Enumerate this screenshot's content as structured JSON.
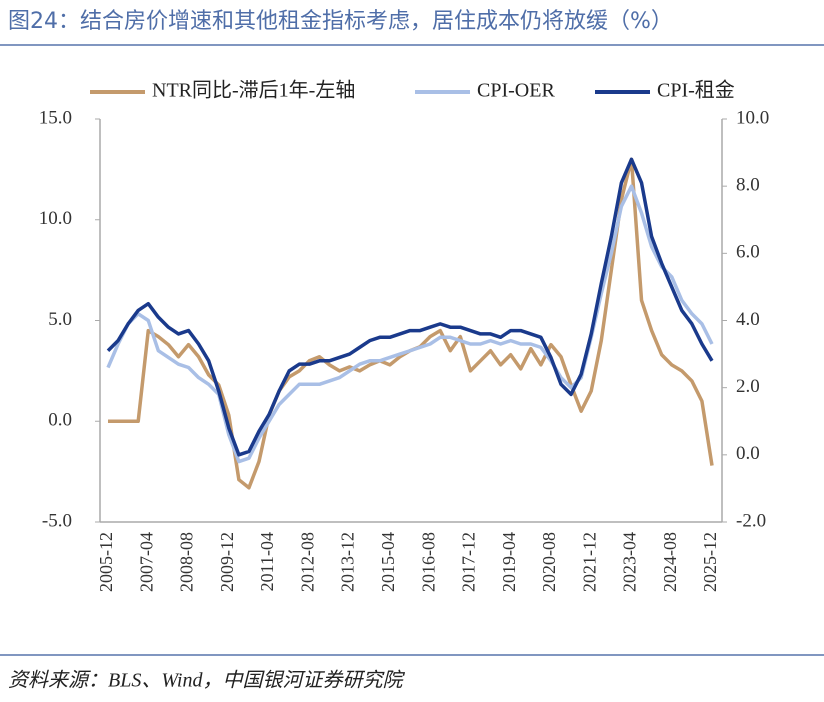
{
  "chart_data": {
    "type": "line",
    "title": "图24：结合房价增速和其他租金指标考虑，居住成本仍将放缓（%）",
    "source": "资料来源：BLS、Wind，中国银河证券研究院",
    "x": [
      "2005-12",
      "2006-04",
      "2006-08",
      "2006-12",
      "2007-04",
      "2007-08",
      "2007-12",
      "2008-04",
      "2008-08",
      "2008-12",
      "2009-04",
      "2009-08",
      "2009-12",
      "2010-04",
      "2010-08",
      "2010-12",
      "2011-04",
      "2011-08",
      "2011-12",
      "2012-04",
      "2012-08",
      "2012-12",
      "2013-04",
      "2013-08",
      "2013-12",
      "2014-04",
      "2014-08",
      "2014-12",
      "2015-04",
      "2015-08",
      "2015-12",
      "2016-04",
      "2016-08",
      "2016-12",
      "2017-04",
      "2017-08",
      "2017-12",
      "2018-04",
      "2018-08",
      "2018-12",
      "2019-04",
      "2019-08",
      "2019-12",
      "2020-04",
      "2020-08",
      "2020-12",
      "2021-04",
      "2021-08",
      "2021-12",
      "2022-04",
      "2022-08",
      "2022-12",
      "2023-04",
      "2023-08",
      "2023-12",
      "2024-04",
      "2024-08",
      "2024-12",
      "2025-04",
      "2025-08",
      "2025-12"
    ],
    "xticks": [
      "2005-12",
      "2007-04",
      "2008-08",
      "2009-12",
      "2011-04",
      "2012-08",
      "2013-12",
      "2015-04",
      "2016-08",
      "2017-12",
      "2019-04",
      "2020-08",
      "2021-12",
      "2023-04",
      "2024-08",
      "2025-12"
    ],
    "series": [
      {
        "name": "NTR同比-滞后1年-左轴",
        "color": "#c49a6c",
        "axis": "y",
        "values": [
          0,
          0,
          0,
          0,
          4.5,
          4.2,
          3.8,
          3.2,
          3.8,
          3.2,
          2.3,
          1.8,
          0.3,
          -2.9,
          -3.3,
          -2.0,
          0.3,
          1.5,
          2.2,
          2.5,
          3.0,
          3.2,
          2.8,
          2.5,
          2.7,
          2.5,
          2.8,
          3.0,
          2.8,
          3.2,
          3.5,
          3.7,
          4.2,
          4.5,
          3.5,
          4.2,
          2.5,
          3.0,
          3.5,
          2.8,
          3.3,
          2.6,
          3.6,
          2.8,
          3.8,
          3.2,
          1.8,
          0.5,
          1.5,
          4.0,
          7.5,
          11.0,
          13.0,
          6.0,
          4.5,
          3.3,
          2.8,
          2.5,
          2.0,
          1.0,
          -2.2
        ]
      },
      {
        "name": "CPI-OER",
        "color": "#a9bfe6",
        "axis": "y2",
        "values": [
          2.6,
          3.3,
          3.9,
          4.2,
          4.0,
          3.1,
          2.9,
          2.7,
          2.6,
          2.3,
          2.1,
          1.8,
          0.6,
          -0.2,
          -0.1,
          0.5,
          1.0,
          1.5,
          1.8,
          2.1,
          2.1,
          2.1,
          2.2,
          2.3,
          2.5,
          2.7,
          2.8,
          2.8,
          2.9,
          3.0,
          3.1,
          3.2,
          3.3,
          3.5,
          3.5,
          3.4,
          3.3,
          3.3,
          3.4,
          3.3,
          3.4,
          3.3,
          3.3,
          3.2,
          2.8,
          2.3,
          2.0,
          2.3,
          3.5,
          4.8,
          6.0,
          7.4,
          8.0,
          7.2,
          6.2,
          5.6,
          5.3,
          4.6,
          4.2,
          3.9,
          3.3
        ]
      },
      {
        "name": "CPI-租金",
        "color": "#1a3a8c",
        "axis": "y2",
        "values": [
          3.1,
          3.4,
          3.9,
          4.3,
          4.5,
          4.1,
          3.8,
          3.6,
          3.7,
          3.3,
          2.8,
          1.9,
          0.8,
          0.0,
          0.1,
          0.7,
          1.2,
          1.9,
          2.5,
          2.7,
          2.7,
          2.8,
          2.8,
          2.9,
          3.0,
          3.2,
          3.4,
          3.5,
          3.5,
          3.6,
          3.7,
          3.7,
          3.8,
          3.9,
          3.8,
          3.8,
          3.7,
          3.6,
          3.6,
          3.5,
          3.7,
          3.7,
          3.6,
          3.5,
          2.9,
          2.1,
          1.8,
          2.4,
          3.6,
          5.1,
          6.5,
          8.1,
          8.8,
          8.1,
          6.5,
          5.7,
          5.0,
          4.3,
          3.9,
          3.3,
          2.8
        ]
      }
    ],
    "ylim": [
      -5,
      15
    ],
    "yticks": [
      {
        "value": -5,
        "label": "-5.0"
      },
      {
        "value": 0,
        "label": "0.0"
      },
      {
        "value": 5,
        "label": "5.0"
      },
      {
        "value": 10,
        "label": "10.0"
      },
      {
        "value": 15,
        "label": "15.0"
      }
    ],
    "y2lim": [
      -2,
      10
    ],
    "y2ticks": [
      {
        "value": -2,
        "label": "-2.0"
      },
      {
        "value": 0,
        "label": "0.0"
      },
      {
        "value": 2,
        "label": "2.0"
      },
      {
        "value": 4,
        "label": "4.0"
      },
      {
        "value": 6,
        "label": "6.0"
      },
      {
        "value": 8,
        "label": "8.0"
      },
      {
        "value": 10,
        "label": "10.0"
      }
    ],
    "legend": "top",
    "grid": false
  }
}
